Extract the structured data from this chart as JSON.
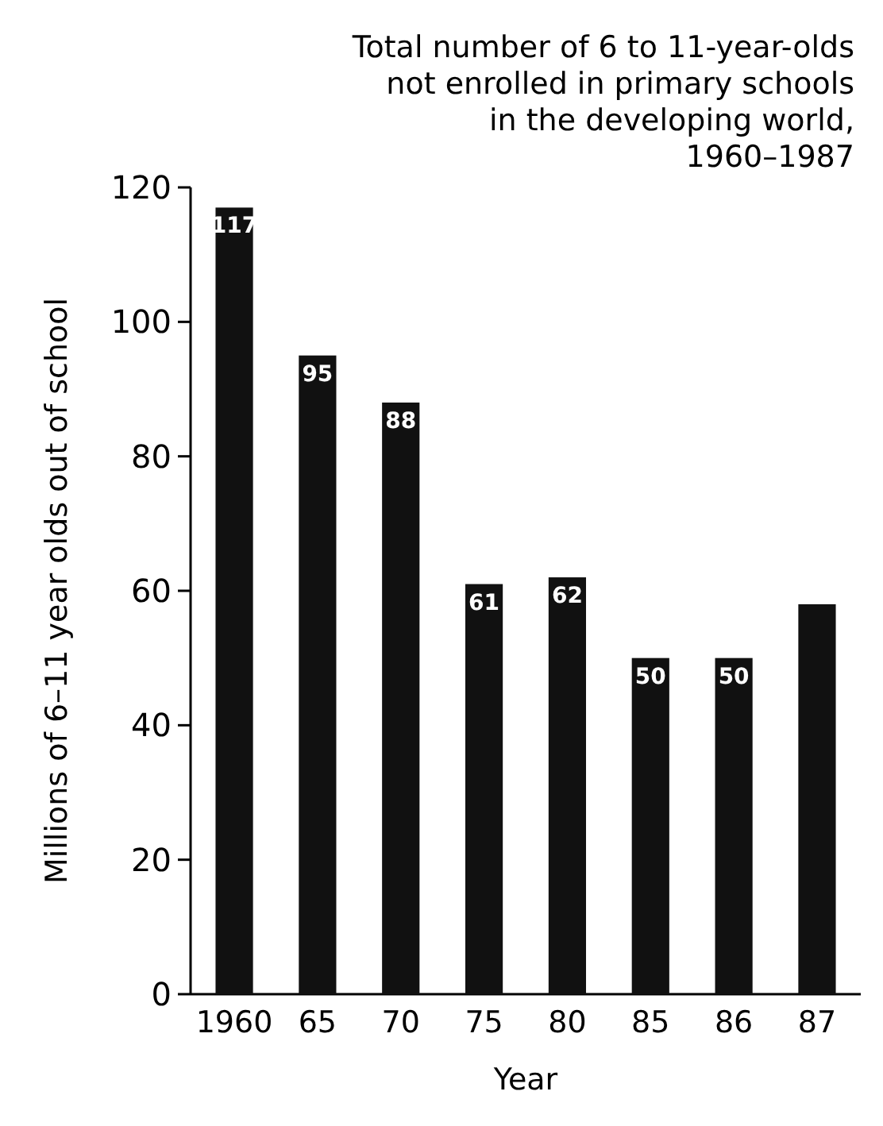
{
  "chart_data": {
    "type": "bar",
    "title": "Total number of 6 to 11-year-olds not enrolled in primary schools in the developing world, 1960–1987",
    "xlabel": "Year",
    "ylabel": "Millions of 6–11 year olds out of school",
    "categories": [
      "1960",
      "65",
      "70",
      "75",
      "80",
      "85",
      "86",
      "87"
    ],
    "values": [
      117,
      95,
      88,
      61,
      62,
      50,
      50,
      58
    ],
    "value_labels": [
      "117",
      "95",
      "88",
      "61",
      "62",
      "50",
      "50",
      null
    ],
    "color": "#111111",
    "ylim": [
      0,
      120
    ],
    "yticks": [
      0,
      20,
      40,
      60,
      80,
      100,
      120
    ]
  }
}
